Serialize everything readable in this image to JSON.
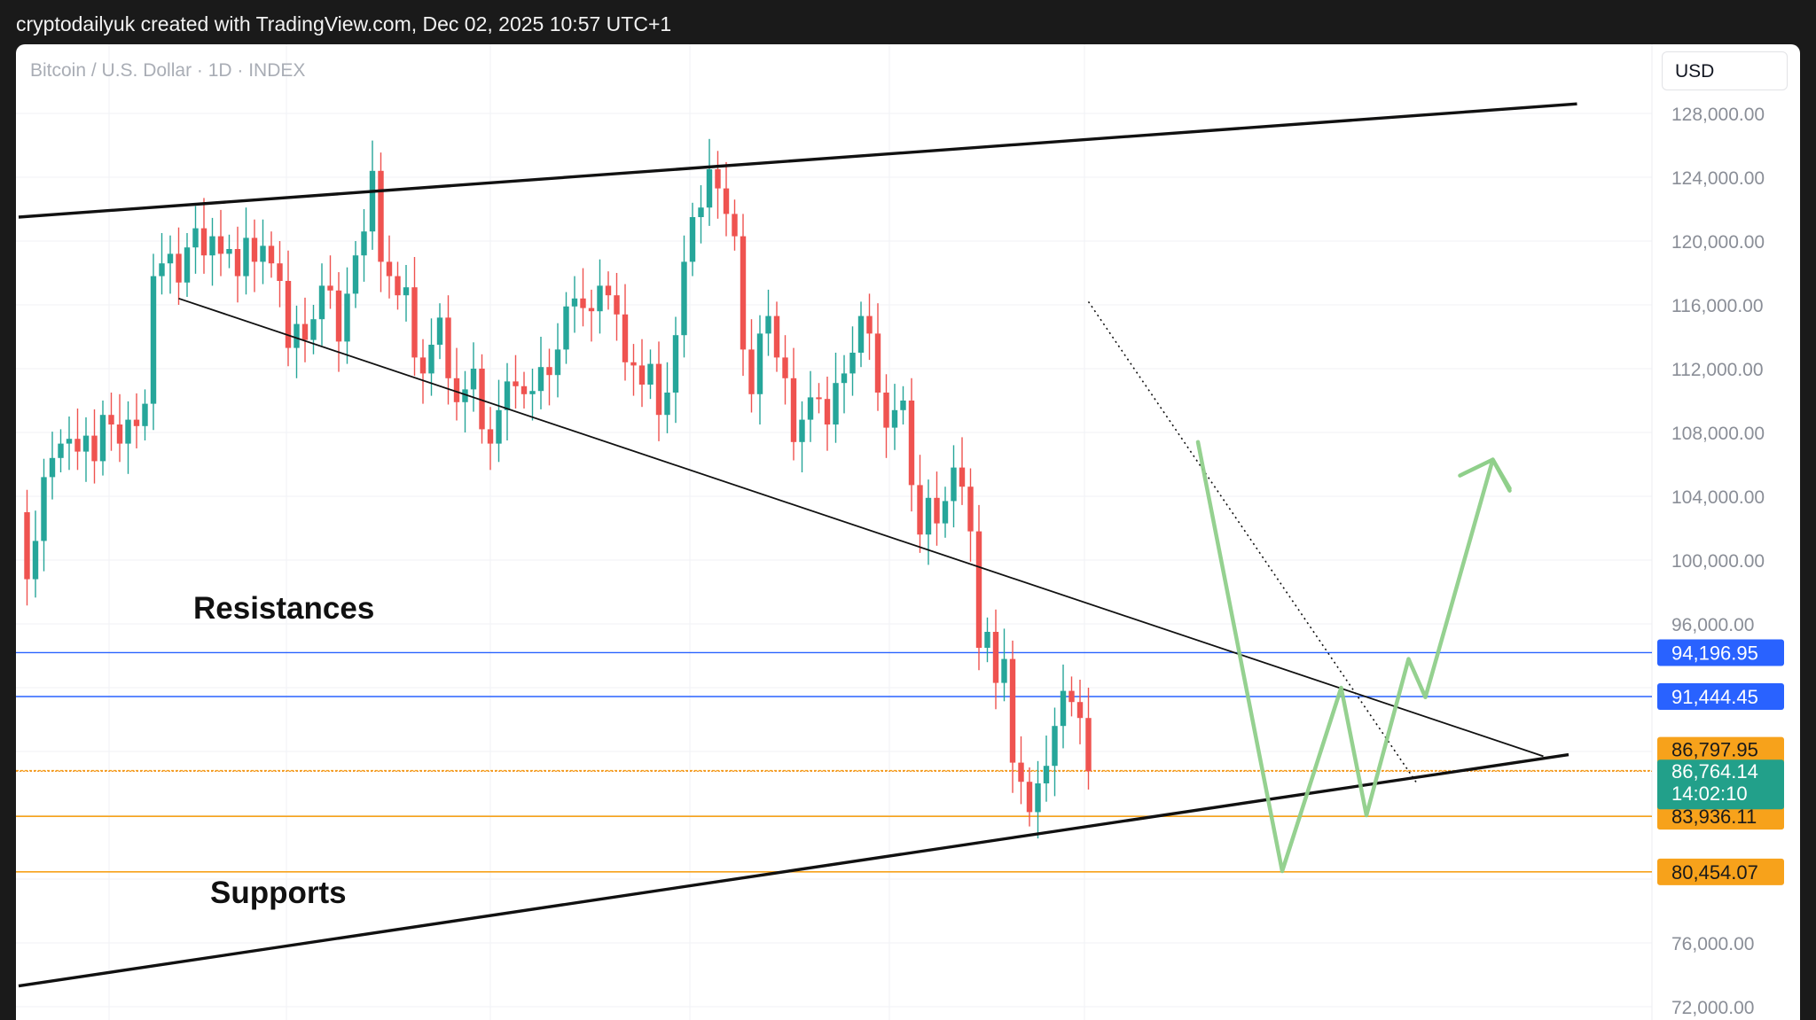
{
  "header": {
    "text": "cryptodailyuk created with TradingView.com, Dec 02, 2025 10:57 UTC+1"
  },
  "symbol": {
    "title": "Bitcoin / U.S. Dollar · 1D · INDEX"
  },
  "axis": {
    "currency": "USD"
  },
  "annotations": {
    "resistances": "Resistances",
    "supports": "Supports"
  },
  "colors": {
    "up": "#26a69a",
    "down": "#ef5350",
    "resistance": "#2962ff",
    "support": "#f7a21b",
    "countdown_bg": "#22a08a",
    "projection": "#8fcf8a"
  },
  "chart_data": {
    "type": "candlestick",
    "title": "Bitcoin / U.S. Dollar · 1D · INDEX",
    "ylim": [
      71000,
      130500
    ],
    "y_ticks": [
      72000,
      76000,
      80000,
      84000,
      88000,
      92000,
      96000,
      100000,
      104000,
      108000,
      112000,
      116000,
      120000,
      124000,
      128000
    ],
    "y_tick_labels": [
      "72,000.00",
      "76,000.00",
      "",
      "",
      "",
      "",
      "96,000.00",
      "100,000.00",
      "104,000.00",
      "108,000.00",
      "112,000.00",
      "116,000.00",
      "120,000.00",
      "124,000.00",
      "128,000.00"
    ],
    "price_series": [
      103000,
      98800,
      101200,
      105200,
      106400,
      107300,
      107600,
      106800,
      107800,
      106200,
      109100,
      108500,
      107300,
      108800,
      108400,
      109800,
      117800,
      118600,
      119200,
      117400,
      119600,
      120800,
      119100,
      120300,
      119200,
      119500,
      117800,
      120200,
      118700,
      119700,
      118600,
      117500,
      113300,
      114800,
      113800,
      115100,
      117200,
      116900,
      113700,
      116700,
      119100,
      120600,
      124400,
      118700,
      117800,
      116600,
      117100,
      112700,
      111700,
      113500,
      115200,
      111400,
      109900,
      110700,
      112000,
      108200,
      107300,
      109400,
      111200,
      110900,
      110400,
      110600,
      112100,
      111600,
      113200,
      115900,
      116400,
      115800,
      115600,
      117200,
      116600,
      115400,
      112400,
      112200,
      111000,
      112300,
      109100,
      110500,
      114100,
      118700,
      121500,
      122100,
      124500,
      123300,
      121700,
      120300,
      113200,
      110400,
      114200,
      115300,
      112700,
      111400,
      107400,
      108800,
      110200,
      110100,
      108500,
      111100,
      111700,
      113000,
      115300,
      114200,
      110500,
      108300,
      109400,
      110000,
      104700,
      101600,
      103900,
      102300,
      103700,
      105800,
      104600,
      101800,
      94500,
      95500,
      92300,
      93800,
      87300,
      86100,
      84200,
      86000,
      87100,
      89600,
      91800,
      91100,
      90100,
      86764
    ],
    "current_price": "86,764.14",
    "countdown": "14:02:10",
    "horizontal_levels": [
      {
        "value": 94196.95,
        "label": "94,196.95",
        "kind": "resistance"
      },
      {
        "value": 91444.45,
        "label": "91,444.45",
        "kind": "resistance"
      },
      {
        "value": 86797.95,
        "label": "86,797.95",
        "kind": "support"
      },
      {
        "value": 83936.11,
        "label": "83,936.11",
        "kind": "support"
      },
      {
        "value": 80454.07,
        "label": "80,454.07",
        "kind": "support"
      }
    ],
    "trendlines": [
      {
        "name": "upper-channel",
        "from": [
          0,
          121500
        ],
        "to": [
          185,
          128600
        ]
      },
      {
        "name": "lower-channel",
        "from": [
          0,
          73300
        ],
        "to": [
          184,
          87800
        ]
      },
      {
        "name": "descending-resistance",
        "from": [
          19,
          116400
        ],
        "to": [
          181,
          87700
        ]
      },
      {
        "name": "dotted-downtrend",
        "from": [
          127,
          116200
        ],
        "to": [
          166,
          86000
        ]
      }
    ],
    "projection": [
      [
        140,
        107400
      ],
      [
        150,
        80500
      ],
      [
        157,
        92000
      ],
      [
        160,
        84000
      ],
      [
        165,
        93800
      ],
      [
        167,
        91400
      ],
      [
        175,
        106300
      ],
      [
        177,
        104500
      ]
    ],
    "grid": true
  }
}
